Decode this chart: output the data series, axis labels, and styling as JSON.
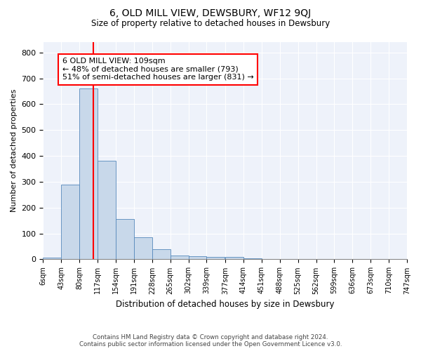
{
  "title": "6, OLD MILL VIEW, DEWSBURY, WF12 9QJ",
  "subtitle": "Size of property relative to detached houses in Dewsbury",
  "xlabel": "Distribution of detached houses by size in Dewsbury",
  "ylabel": "Number of detached properties",
  "bar_color": "#c8d8ea",
  "bar_edge_color": "#5588bb",
  "background_color": "#eef2fa",
  "grid_color": "white",
  "bins": [
    "6sqm",
    "43sqm",
    "80sqm",
    "117sqm",
    "154sqm",
    "191sqm",
    "228sqm",
    "265sqm",
    "302sqm",
    "339sqm",
    "377sqm",
    "414sqm",
    "451sqm",
    "488sqm",
    "525sqm",
    "562sqm",
    "599sqm",
    "636sqm",
    "673sqm",
    "710sqm",
    "747sqm"
  ],
  "bin_edges": [
    6,
    43,
    80,
    117,
    154,
    191,
    228,
    265,
    302,
    339,
    377,
    414,
    451,
    488,
    525,
    562,
    599,
    636,
    673,
    710,
    747
  ],
  "bar_heights": [
    6,
    290,
    660,
    380,
    155,
    85,
    40,
    14,
    12,
    10,
    8,
    5,
    0,
    0,
    0,
    0,
    0,
    0,
    0,
    0
  ],
  "property_size": 109,
  "property_line_color": "red",
  "annotation_line1": "6 OLD MILL VIEW: 109sqm",
  "annotation_line2": "← 48% of detached houses are smaller (793)",
  "annotation_line3": "51% of semi-detached houses are larger (831) →",
  "annotation_box_color": "white",
  "annotation_box_edge": "red",
  "ylim": [
    0,
    840
  ],
  "yticks": [
    0,
    100,
    200,
    300,
    400,
    500,
    600,
    700,
    800
  ],
  "footer_line1": "Contains HM Land Registry data © Crown copyright and database right 2024.",
  "footer_line2": "Contains public sector information licensed under the Open Government Licence v3.0."
}
